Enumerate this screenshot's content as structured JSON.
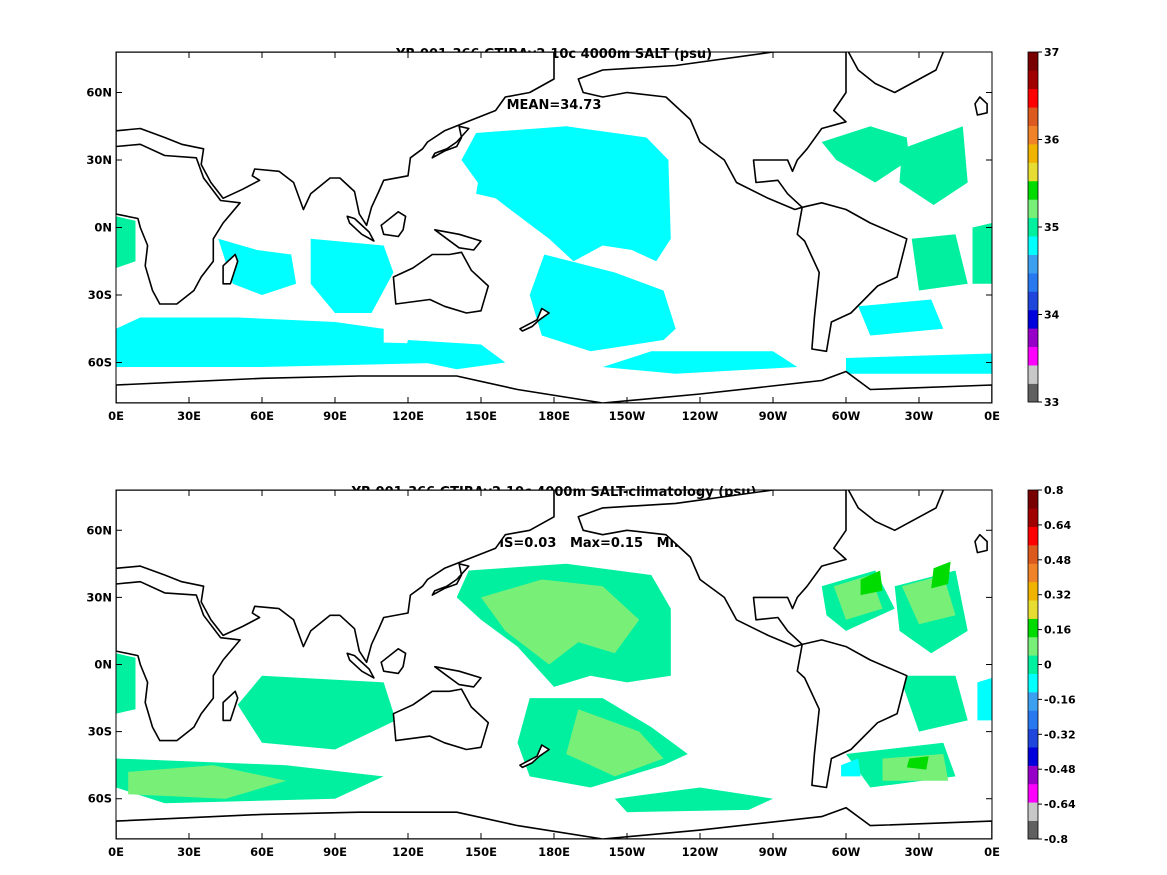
{
  "colors": {
    "colorbar": [
      "#606060",
      "#c8c8c8",
      "#ff00ff",
      "#9600c8",
      "#0000dc",
      "#1e46dc",
      "#2878f0",
      "#3ca0f0",
      "#00ffff",
      "#00f0a0",
      "#78f078",
      "#00dc00",
      "#e6dc32",
      "#f0b400",
      "#f08228",
      "#dc5a1e",
      "#ff0000",
      "#a00000",
      "#780000"
    ],
    "salt_fill": "#00ffff",
    "salt_high": "#00f0a0",
    "diff_fill": "#00f0a0",
    "diff_pos": "#78f078",
    "diff_high": "#00dc00",
    "diff_neg": "#00ffff",
    "coast": "#000000"
  },
  "panels": [
    {
      "title_line1": "YR 001-366 GTJRAv2.10c 4000m SALT (psu)",
      "title_line2": "MEAN=34.73",
      "xticks": [
        "0E",
        "30E",
        "60E",
        "90E",
        "120E",
        "150E",
        "180E",
        "150W",
        "120W",
        "90W",
        "60W",
        "30W",
        "0E"
      ],
      "yticks": [
        "60N",
        "30N",
        "0N",
        "30S",
        "60S"
      ],
      "colorbar_labels": [
        "37",
        "36",
        "35",
        "34",
        "33"
      ]
    },
    {
      "title_line1": "YR 001-366 GTJRAv2.10c 4000m SALT-climatology (psu)",
      "title_line2": "MEAN=-0.00   RMS=0.03   Max=0.15   Min=-0.12",
      "xticks": [
        "0E",
        "30E",
        "60E",
        "90E",
        "120E",
        "150E",
        "180E",
        "150W",
        "120W",
        "90W",
        "60W",
        "30W",
        "0E"
      ],
      "yticks": [
        "60N",
        "30N",
        "0N",
        "30S",
        "60S"
      ],
      "colorbar_labels": [
        "0.8",
        "0.64",
        "0.48",
        "0.32",
        "0.16",
        "0",
        "-0.16",
        "-0.32",
        "-0.48",
        "-0.64",
        "-0.8"
      ]
    }
  ]
}
